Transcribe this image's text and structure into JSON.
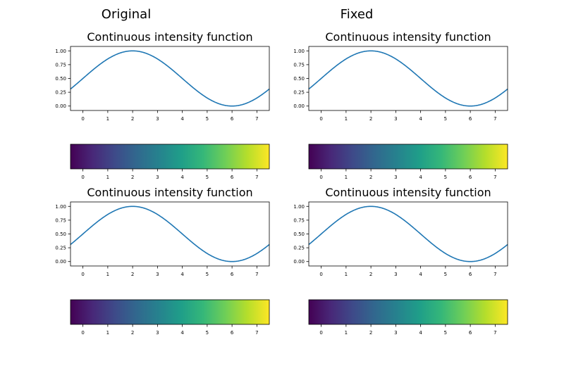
{
  "columns": [
    "Original",
    "Fixed"
  ],
  "colormap": {
    "name": "viridis",
    "stops": [
      "#440154",
      "#482878",
      "#3e4a89",
      "#31688e",
      "#26828e",
      "#1f9e89",
      "#35b779",
      "#6ece58",
      "#b5de2b",
      "#fde725"
    ]
  },
  "line_color": "#1f77b4",
  "chart_data": [
    {
      "type": "line",
      "title": "Continuous intensity function",
      "function": "0.5*(1+cos(pi*(x-2)/4))",
      "x_range": [
        -0.5,
        7.5
      ],
      "xlim": [
        -0.5,
        7.5
      ],
      "ylim": [
        -0.08,
        1.08
      ],
      "xticks": [
        "0",
        "1",
        "2",
        "3",
        "4",
        "5",
        "6",
        "7"
      ],
      "yticks": [
        "0.00",
        "0.25",
        "0.50",
        "0.75",
        "1.00"
      ],
      "ytick_values": [
        0,
        0.25,
        0.5,
        0.75,
        1.0
      ],
      "colorbar_xticks": [
        "0",
        "1",
        "2",
        "3",
        "4",
        "5",
        "6",
        "7"
      ]
    },
    {
      "type": "line",
      "title": "Continuous intensity function",
      "function": "0.5*(1+cos(pi*(x-2)/4))",
      "x_range": [
        -0.5,
        7.5
      ],
      "xlim": [
        -0.5,
        7.5
      ],
      "ylim": [
        -0.08,
        1.08
      ],
      "xticks": [
        "0",
        "1",
        "2",
        "3",
        "4",
        "5",
        "6",
        "7"
      ],
      "yticks": [
        "0.00",
        "0.25",
        "0.50",
        "0.75",
        "1.00"
      ],
      "ytick_values": [
        0,
        0.25,
        0.5,
        0.75,
        1.0
      ],
      "colorbar_xticks": [
        "0",
        "1",
        "2",
        "3",
        "4",
        "5",
        "6",
        "7"
      ]
    },
    {
      "type": "line",
      "title": "Continuous intensity function",
      "function": "0.5*(1+cos(pi*(x-2)/4))",
      "x_range": [
        -0.5,
        7.5
      ],
      "xlim": [
        -0.5,
        7.5
      ],
      "ylim": [
        -0.08,
        1.08
      ],
      "xticks": [
        "0",
        "1",
        "2",
        "3",
        "4",
        "5",
        "6",
        "7"
      ],
      "yticks": [
        "0.00",
        "0.25",
        "0.50",
        "0.75",
        "1.00"
      ],
      "ytick_values": [
        0,
        0.25,
        0.5,
        0.75,
        1.0
      ],
      "colorbar_xticks": [
        "0",
        "1",
        "2",
        "3",
        "4",
        "5",
        "6",
        "7"
      ]
    },
    {
      "type": "line",
      "title": "Continuous intensity function",
      "function": "0.5*(1+cos(pi*(x-2)/4))",
      "x_range": [
        -0.5,
        7.5
      ],
      "xlim": [
        -0.5,
        7.5
      ],
      "ylim": [
        -0.08,
        1.08
      ],
      "xticks": [
        "0",
        "1",
        "2",
        "3",
        "4",
        "5",
        "6",
        "7"
      ],
      "yticks": [
        "0.00",
        "0.25",
        "0.50",
        "0.75",
        "1.00"
      ],
      "ytick_values": [
        0,
        0.25,
        0.5,
        0.75,
        1.0
      ],
      "colorbar_xticks": [
        "0",
        "1",
        "2",
        "3",
        "4",
        "5",
        "6",
        "7"
      ]
    }
  ]
}
